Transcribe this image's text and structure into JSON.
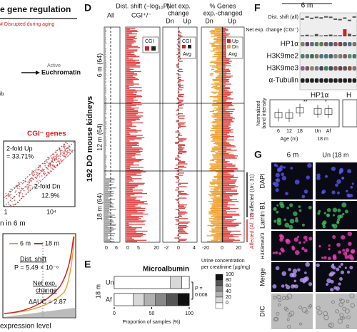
{
  "panel_c": {
    "title": "e gene regulation",
    "note": "# Disrupted during aging",
    "active": "Active",
    "euchromatin": "Euchromatin",
    "fragment": "ib",
    "scatter_title": "CGI⁻ genes",
    "up_label": "2-fold Up",
    "up_pct": "= 33.71%",
    "dn_label": "2-fold Dn",
    "dn_pct": "12.9%",
    "x_ticks": [
      "1",
      "10⁴"
    ],
    "x_label": "n in 6 m",
    "legend": [
      "6 m",
      "18 m"
    ],
    "dist_shift": "Dist. shift",
    "p_value": "P = 5.49 × 10⁻⁶",
    "net_exp": "Net exp.",
    "change": "change",
    "dauc": "ΔAUC = 2.87",
    "x_label2": "expression level"
  },
  "panel_d": {
    "letter": "D",
    "col1": "Dist. shift (−log₁₀P)",
    "all": "All",
    "cgi": "CGI⁺/⁻",
    "col2a": "Net exp.",
    "col2b": "change",
    "col3a": "% Genes",
    "col3b": "exp.-changed",
    "dn": "Dn",
    "up": "Up",
    "y_label": "192 DO mouse kidneys",
    "rows": [
      "6 m (64)",
      "12 m (64)",
      "18 m (64)"
    ],
    "legend_cgi": "CGI",
    "legend_pm": "+  −",
    "legend_avg": "Avg",
    "legend_up": "Up",
    "legend_dn": "Dn",
    "ticks_all": [
      "0",
      "6"
    ],
    "ticks_cgi": [
      "0",
      "5",
      "20"
    ],
    "ticks_net": [
      "-2",
      "0",
      "4"
    ],
    "ticks_pct": [
      "-20",
      "0",
      "20"
    ],
    "unaffected": "Unaffected (Un; 31)",
    "affected": "Affected (Af; 17)"
  },
  "panel_e": {
    "letter": "E",
    "title": "Microalbumin",
    "groups": [
      "Un",
      "Af"
    ],
    "age": "18 m",
    "p": "P =",
    "p_value": "0.008",
    "x_ticks": [
      "0",
      "50",
      "100"
    ],
    "x_label": "Proportion of samples (%)",
    "legend_title_1": "Urine concentration",
    "legend_title_2": "per creatinine (µg/mg)",
    "legend_ticks": [
      "100",
      "80",
      "60",
      "40",
      "20",
      "0"
    ],
    "segments": [
      [
        75,
        15,
        10
      ],
      [
        25,
        15,
        15,
        15,
        15,
        15
      ]
    ]
  },
  "panel_f": {
    "letter": "F",
    "age": "6 m",
    "rows": [
      "Dist. shift (all)",
      "Net exp. change (CGI⁻)",
      "HP1α",
      "H3K9me2",
      "H3K9me3",
      "α-Tubulin"
    ],
    "box_title": "HP1α",
    "box_title2": "H",
    "y_label_1": "Normalized",
    "y_label_2": "band intensity",
    "x_ticks": [
      "6",
      "12",
      "18",
      "Un",
      "Af"
    ],
    "age_label": "Age (m)",
    "age2": "18 m",
    "sig1": "**",
    "sig2": "*"
  },
  "panel_g": {
    "letter": "G",
    "col1": "6 m",
    "col2": "Un (18 m",
    "rows": [
      "DAPI",
      "Lamin B1",
      "H3K9me2/3",
      "Merge",
      "DIC"
    ]
  }
}
